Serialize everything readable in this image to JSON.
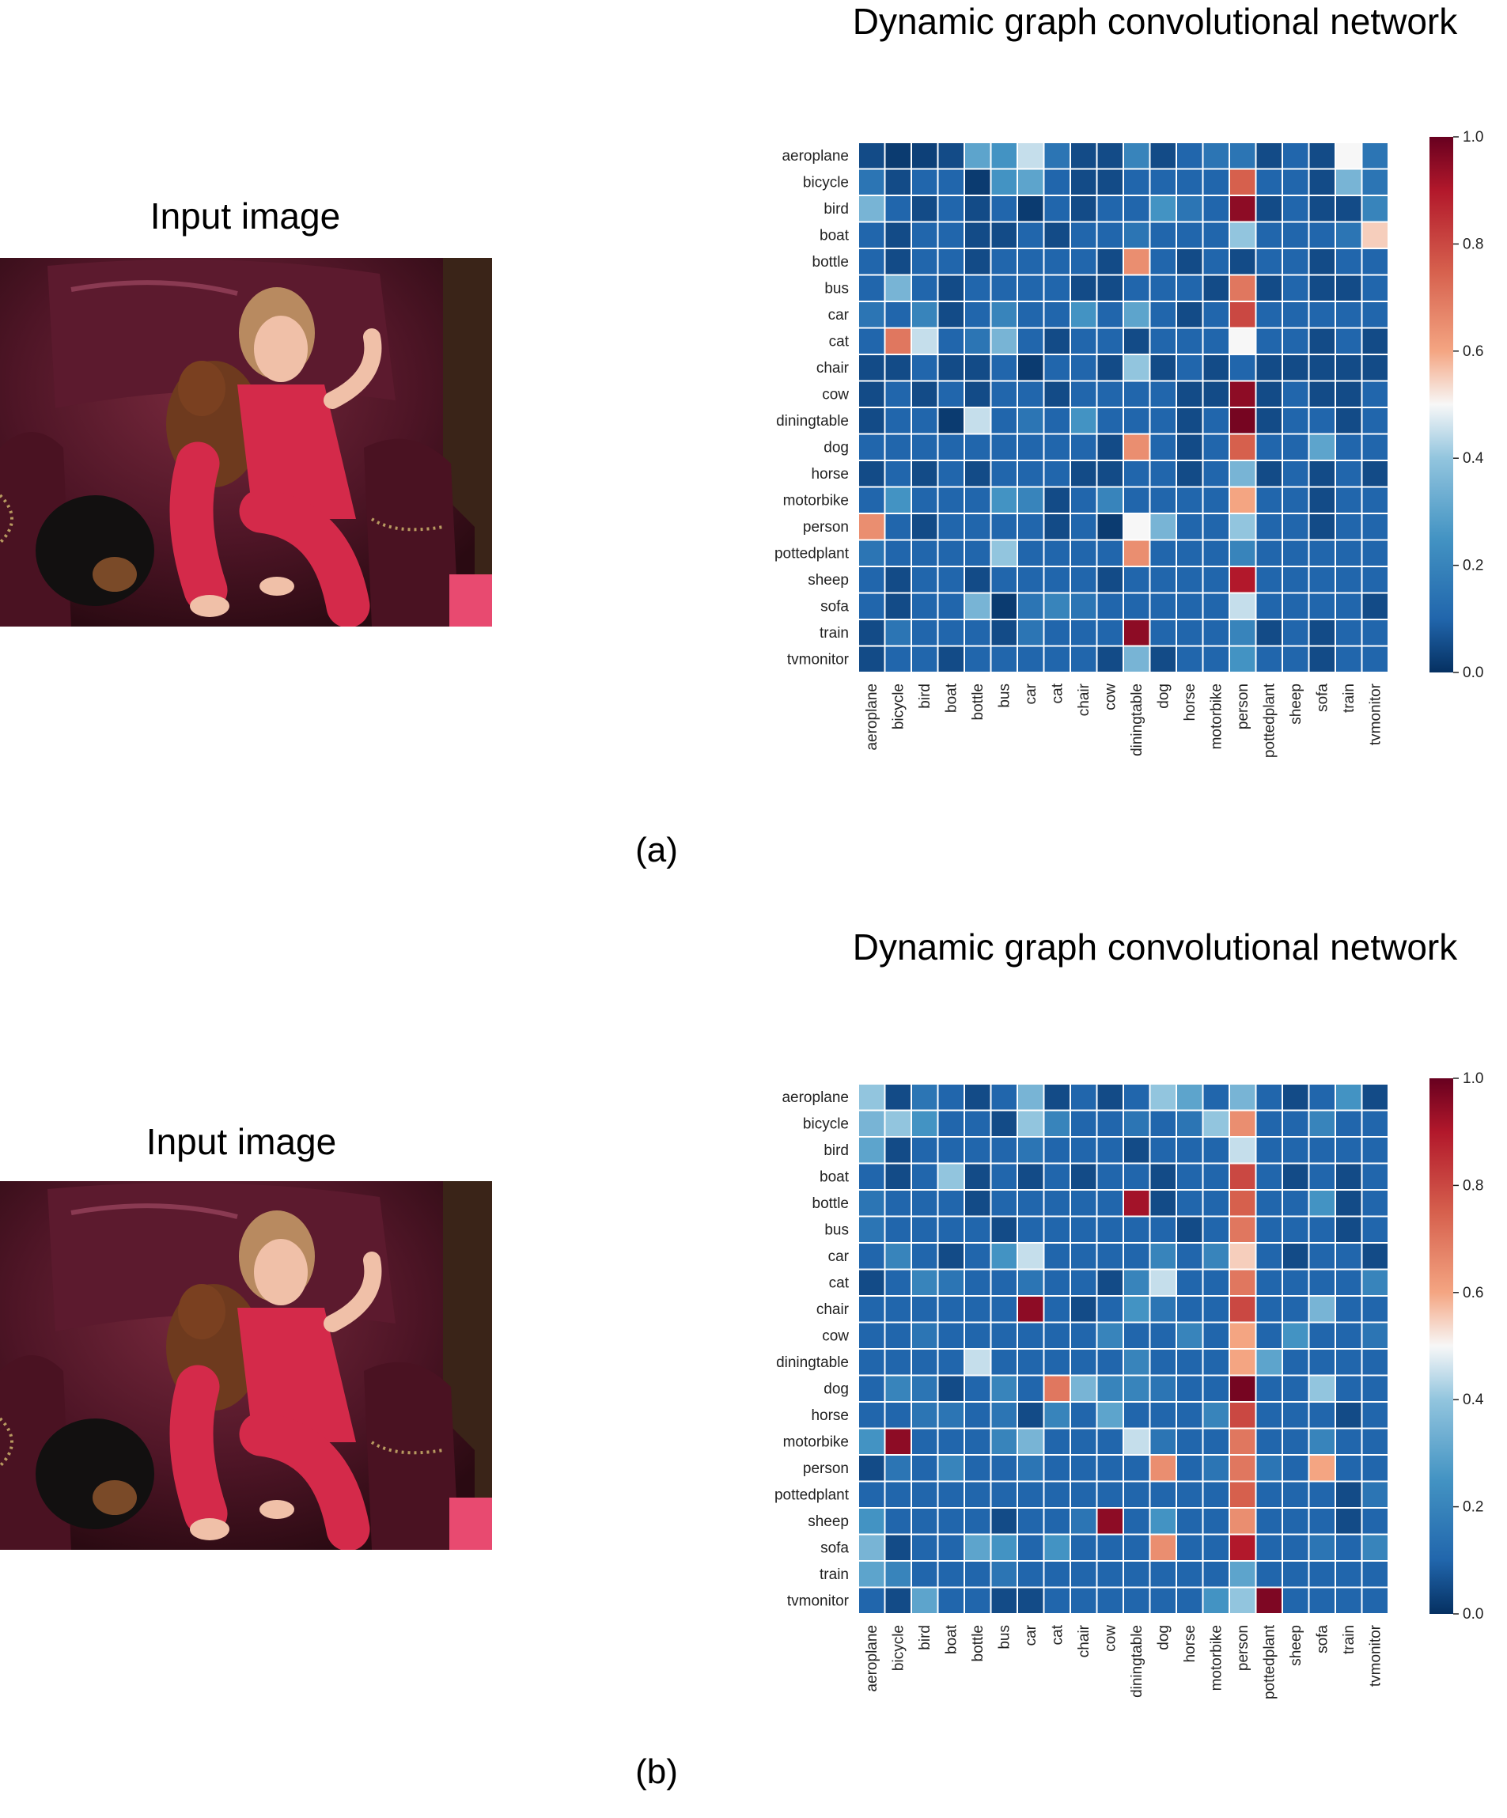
{
  "figure": {
    "input_title": "Input image",
    "photo_icon": "photo-girl-with-dogs-on-armchair",
    "panels": [
      {
        "label": "(a)"
      },
      {
        "label": "(b)"
      }
    ]
  },
  "chart_data": [
    {
      "type": "heatmap",
      "title": "Dynamic graph convolutional network",
      "labels": [
        "aeroplane",
        "bicycle",
        "bird",
        "boat",
        "bottle",
        "bus",
        "car",
        "cat",
        "chair",
        "cow",
        "diningtable",
        "dog",
        "horse",
        "motorbike",
        "person",
        "pottedplant",
        "sheep",
        "sofa",
        "train",
        "tvmonitor"
      ],
      "colorbar": {
        "min": 0.0,
        "max": 1.0,
        "ticks": [
          "0.0",
          "0.2",
          "0.4",
          "0.6",
          "0.8",
          "1.0"
        ],
        "cmap": "RdBu_r"
      },
      "values": [
        [
          0.05,
          0.02,
          0.03,
          0.05,
          0.3,
          0.25,
          0.45,
          0.15,
          0.05,
          0.05,
          0.2,
          0.05,
          0.1,
          0.15,
          0.15,
          0.05,
          0.1,
          0.05,
          0.5,
          0.15
        ],
        [
          0.15,
          0.05,
          0.1,
          0.1,
          0.02,
          0.25,
          0.3,
          0.1,
          0.05,
          0.05,
          0.1,
          0.1,
          0.1,
          0.1,
          0.75,
          0.1,
          0.1,
          0.05,
          0.35,
          0.15
        ],
        [
          0.35,
          0.1,
          0.05,
          0.1,
          0.05,
          0.1,
          0.02,
          0.1,
          0.05,
          0.1,
          0.1,
          0.25,
          0.15,
          0.1,
          0.95,
          0.05,
          0.1,
          0.05,
          0.05,
          0.2
        ],
        [
          0.1,
          0.05,
          0.1,
          0.1,
          0.05,
          0.05,
          0.1,
          0.05,
          0.1,
          0.1,
          0.15,
          0.1,
          0.1,
          0.1,
          0.4,
          0.1,
          0.1,
          0.1,
          0.15,
          0.55
        ],
        [
          0.1,
          0.05,
          0.1,
          0.1,
          0.05,
          0.1,
          0.1,
          0.1,
          0.1,
          0.05,
          0.65,
          0.1,
          0.05,
          0.1,
          0.05,
          0.1,
          0.1,
          0.05,
          0.1,
          0.1
        ],
        [
          0.1,
          0.35,
          0.1,
          0.05,
          0.1,
          0.1,
          0.1,
          0.1,
          0.05,
          0.05,
          0.1,
          0.1,
          0.1,
          0.05,
          0.7,
          0.05,
          0.1,
          0.05,
          0.05,
          0.1
        ],
        [
          0.15,
          0.1,
          0.2,
          0.05,
          0.1,
          0.2,
          0.1,
          0.1,
          0.25,
          0.1,
          0.3,
          0.1,
          0.05,
          0.1,
          0.8,
          0.1,
          0.1,
          0.1,
          0.1,
          0.1
        ],
        [
          0.1,
          0.7,
          0.45,
          0.1,
          0.15,
          0.35,
          0.1,
          0.05,
          0.1,
          0.1,
          0.05,
          0.1,
          0.1,
          0.1,
          0.5,
          0.1,
          0.1,
          0.05,
          0.1,
          0.05
        ],
        [
          0.05,
          0.05,
          0.1,
          0.05,
          0.05,
          0.1,
          0.02,
          0.1,
          0.1,
          0.05,
          0.4,
          0.05,
          0.1,
          0.05,
          0.1,
          0.05,
          0.05,
          0.05,
          0.05,
          0.05
        ],
        [
          0.05,
          0.1,
          0.05,
          0.1,
          0.05,
          0.1,
          0.1,
          0.05,
          0.1,
          0.1,
          0.1,
          0.1,
          0.05,
          0.05,
          0.95,
          0.05,
          0.1,
          0.05,
          0.05,
          0.1
        ],
        [
          0.05,
          0.1,
          0.1,
          0.02,
          0.45,
          0.1,
          0.15,
          0.1,
          0.25,
          0.1,
          0.1,
          0.1,
          0.05,
          0.1,
          0.98,
          0.05,
          0.1,
          0.1,
          0.05,
          0.1
        ],
        [
          0.1,
          0.1,
          0.1,
          0.1,
          0.1,
          0.1,
          0.1,
          0.1,
          0.1,
          0.05,
          0.65,
          0.1,
          0.05,
          0.1,
          0.75,
          0.1,
          0.1,
          0.3,
          0.1,
          0.1
        ],
        [
          0.05,
          0.1,
          0.05,
          0.1,
          0.05,
          0.1,
          0.1,
          0.1,
          0.05,
          0.05,
          0.1,
          0.1,
          0.05,
          0.1,
          0.35,
          0.05,
          0.1,
          0.05,
          0.1,
          0.05
        ],
        [
          0.1,
          0.25,
          0.1,
          0.1,
          0.1,
          0.25,
          0.2,
          0.05,
          0.1,
          0.2,
          0.1,
          0.1,
          0.1,
          0.1,
          0.6,
          0.1,
          0.1,
          0.05,
          0.1,
          0.1
        ],
        [
          0.65,
          0.1,
          0.05,
          0.1,
          0.1,
          0.1,
          0.1,
          0.05,
          0.1,
          0.02,
          0.5,
          0.35,
          0.1,
          0.1,
          0.4,
          0.1,
          0.1,
          0.05,
          0.1,
          0.1
        ],
        [
          0.15,
          0.1,
          0.1,
          0.1,
          0.1,
          0.4,
          0.1,
          0.1,
          0.1,
          0.1,
          0.65,
          0.1,
          0.1,
          0.1,
          0.2,
          0.1,
          0.1,
          0.1,
          0.1,
          0.1
        ],
        [
          0.1,
          0.05,
          0.1,
          0.1,
          0.05,
          0.1,
          0.1,
          0.1,
          0.1,
          0.05,
          0.1,
          0.1,
          0.1,
          0.1,
          0.9,
          0.1,
          0.1,
          0.1,
          0.1,
          0.1
        ],
        [
          0.1,
          0.05,
          0.1,
          0.1,
          0.35,
          0.02,
          0.15,
          0.2,
          0.15,
          0.1,
          0.1,
          0.1,
          0.1,
          0.1,
          0.45,
          0.1,
          0.1,
          0.1,
          0.1,
          0.05
        ],
        [
          0.05,
          0.15,
          0.1,
          0.1,
          0.1,
          0.05,
          0.15,
          0.1,
          0.1,
          0.1,
          0.95,
          0.1,
          0.1,
          0.1,
          0.2,
          0.05,
          0.1,
          0.05,
          0.1,
          0.1
        ],
        [
          0.05,
          0.1,
          0.1,
          0.05,
          0.1,
          0.1,
          0.1,
          0.1,
          0.1,
          0.05,
          0.35,
          0.05,
          0.1,
          0.1,
          0.25,
          0.1,
          0.1,
          0.05,
          0.1,
          0.1
        ]
      ]
    },
    {
      "type": "heatmap",
      "title": "Dynamic graph convolutional network",
      "labels": [
        "aeroplane",
        "bicycle",
        "bird",
        "boat",
        "bottle",
        "bus",
        "car",
        "cat",
        "chair",
        "cow",
        "diningtable",
        "dog",
        "horse",
        "motorbike",
        "person",
        "pottedplant",
        "sheep",
        "sofa",
        "train",
        "tvmonitor"
      ],
      "colorbar": {
        "min": 0.0,
        "max": 1.0,
        "ticks": [
          "0.0",
          "0.2",
          "0.4",
          "0.6",
          "0.8",
          "1.0"
        ],
        "cmap": "RdBu_r"
      },
      "values": [
        [
          0.4,
          0.05,
          0.15,
          0.1,
          0.05,
          0.1,
          0.35,
          0.05,
          0.1,
          0.05,
          0.1,
          0.4,
          0.3,
          0.1,
          0.35,
          0.1,
          0.05,
          0.1,
          0.25,
          0.05
        ],
        [
          0.35,
          0.4,
          0.25,
          0.1,
          0.1,
          0.05,
          0.4,
          0.2,
          0.1,
          0.1,
          0.15,
          0.1,
          0.15,
          0.4,
          0.65,
          0.1,
          0.1,
          0.2,
          0.1,
          0.1
        ],
        [
          0.3,
          0.05,
          0.1,
          0.1,
          0.1,
          0.1,
          0.15,
          0.1,
          0.1,
          0.1,
          0.05,
          0.1,
          0.1,
          0.1,
          0.45,
          0.1,
          0.1,
          0.1,
          0.1,
          0.1
        ],
        [
          0.1,
          0.05,
          0.1,
          0.4,
          0.05,
          0.1,
          0.05,
          0.1,
          0.05,
          0.1,
          0.1,
          0.05,
          0.1,
          0.1,
          0.8,
          0.1,
          0.05,
          0.1,
          0.05,
          0.1
        ],
        [
          0.15,
          0.1,
          0.1,
          0.1,
          0.05,
          0.1,
          0.1,
          0.1,
          0.1,
          0.1,
          0.92,
          0.05,
          0.1,
          0.1,
          0.75,
          0.1,
          0.1,
          0.25,
          0.05,
          0.1
        ],
        [
          0.15,
          0.1,
          0.1,
          0.1,
          0.1,
          0.05,
          0.1,
          0.1,
          0.1,
          0.1,
          0.1,
          0.1,
          0.05,
          0.1,
          0.7,
          0.1,
          0.1,
          0.1,
          0.05,
          0.1
        ],
        [
          0.1,
          0.2,
          0.1,
          0.05,
          0.1,
          0.25,
          0.45,
          0.1,
          0.1,
          0.1,
          0.1,
          0.2,
          0.1,
          0.2,
          0.55,
          0.1,
          0.05,
          0.1,
          0.1,
          0.05
        ],
        [
          0.05,
          0.1,
          0.2,
          0.15,
          0.1,
          0.1,
          0.15,
          0.1,
          0.1,
          0.05,
          0.2,
          0.45,
          0.1,
          0.1,
          0.7,
          0.1,
          0.1,
          0.1,
          0.1,
          0.2
        ],
        [
          0.1,
          0.1,
          0.1,
          0.1,
          0.1,
          0.1,
          0.95,
          0.1,
          0.05,
          0.1,
          0.25,
          0.15,
          0.1,
          0.1,
          0.8,
          0.1,
          0.1,
          0.35,
          0.1,
          0.1
        ],
        [
          0.1,
          0.1,
          0.15,
          0.1,
          0.1,
          0.1,
          0.1,
          0.1,
          0.1,
          0.2,
          0.1,
          0.1,
          0.2,
          0.1,
          0.6,
          0.1,
          0.25,
          0.1,
          0.1,
          0.15
        ],
        [
          0.1,
          0.1,
          0.1,
          0.1,
          0.45,
          0.1,
          0.1,
          0.1,
          0.1,
          0.1,
          0.2,
          0.1,
          0.1,
          0.1,
          0.6,
          0.3,
          0.1,
          0.1,
          0.1,
          0.1
        ],
        [
          0.1,
          0.2,
          0.15,
          0.05,
          0.1,
          0.2,
          0.1,
          0.7,
          0.35,
          0.2,
          0.2,
          0.15,
          0.1,
          0.1,
          0.98,
          0.1,
          0.1,
          0.4,
          0.1,
          0.1
        ],
        [
          0.1,
          0.1,
          0.15,
          0.15,
          0.1,
          0.15,
          0.05,
          0.2,
          0.1,
          0.3,
          0.1,
          0.1,
          0.1,
          0.2,
          0.8,
          0.1,
          0.1,
          0.1,
          0.05,
          0.1
        ],
        [
          0.25,
          0.95,
          0.1,
          0.1,
          0.1,
          0.2,
          0.35,
          0.1,
          0.1,
          0.1,
          0.45,
          0.15,
          0.1,
          0.1,
          0.7,
          0.1,
          0.1,
          0.2,
          0.1,
          0.1
        ],
        [
          0.05,
          0.15,
          0.1,
          0.2,
          0.1,
          0.1,
          0.15,
          0.1,
          0.1,
          0.1,
          0.1,
          0.65,
          0.1,
          0.15,
          0.7,
          0.15,
          0.1,
          0.6,
          0.1,
          0.1
        ],
        [
          0.1,
          0.1,
          0.1,
          0.1,
          0.1,
          0.1,
          0.1,
          0.1,
          0.1,
          0.1,
          0.1,
          0.1,
          0.1,
          0.1,
          0.75,
          0.1,
          0.1,
          0.1,
          0.05,
          0.15
        ],
        [
          0.25,
          0.1,
          0.1,
          0.1,
          0.1,
          0.05,
          0.1,
          0.1,
          0.15,
          0.95,
          0.1,
          0.25,
          0.1,
          0.1,
          0.65,
          0.1,
          0.1,
          0.1,
          0.05,
          0.1
        ],
        [
          0.35,
          0.05,
          0.1,
          0.1,
          0.3,
          0.25,
          0.1,
          0.25,
          0.1,
          0.1,
          0.1,
          0.65,
          0.1,
          0.1,
          0.9,
          0.1,
          0.1,
          0.15,
          0.1,
          0.2
        ],
        [
          0.3,
          0.2,
          0.1,
          0.1,
          0.1,
          0.15,
          0.1,
          0.1,
          0.1,
          0.1,
          0.1,
          0.1,
          0.1,
          0.1,
          0.3,
          0.1,
          0.1,
          0.1,
          0.1,
          0.1
        ],
        [
          0.1,
          0.05,
          0.3,
          0.1,
          0.1,
          0.05,
          0.05,
          0.1,
          0.1,
          0.1,
          0.1,
          0.1,
          0.1,
          0.25,
          0.4,
          0.97,
          0.1,
          0.1,
          0.1,
          0.1
        ]
      ]
    }
  ]
}
